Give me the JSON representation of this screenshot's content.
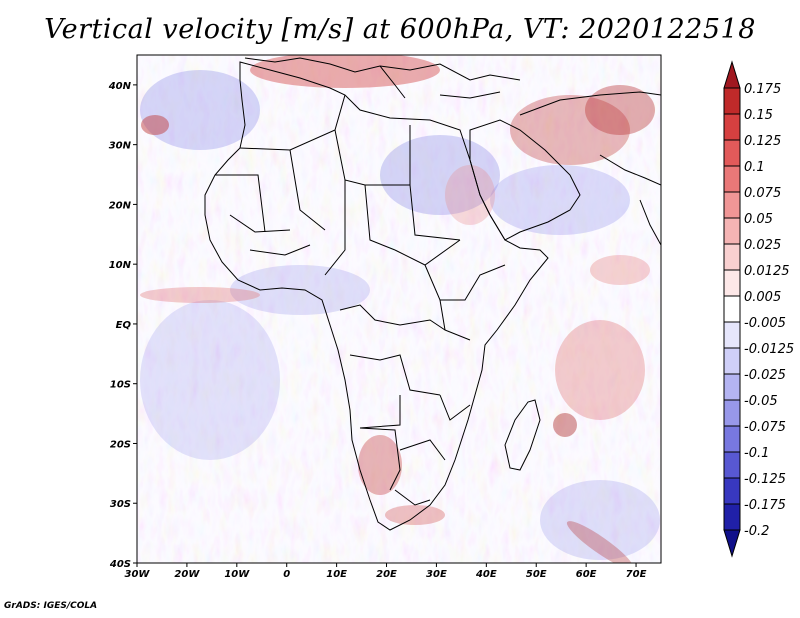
{
  "title": "Vertical velocity [m/s] at 600hPa, VT: 2020122518",
  "footer": "GrADS: IGES/COLA",
  "map": {
    "lat_labels": [
      "40N",
      "30N",
      "20N",
      "10N",
      "EQ",
      "10S",
      "20S",
      "30S",
      "40S"
    ],
    "lon_labels": [
      "30W",
      "20W",
      "10W",
      "0",
      "10E",
      "20E",
      "30E",
      "40E",
      "50E",
      "60E",
      "70E"
    ],
    "lon_range": [
      -30,
      75
    ],
    "lat_range": [
      -40,
      45
    ]
  },
  "colorbar": {
    "labels": [
      "0.175",
      "0.15",
      "0.125",
      "0.1",
      "0.075",
      "0.05",
      "0.025",
      "0.0125",
      "0.005",
      "-0.005",
      "-0.0125",
      "-0.025",
      "-0.05",
      "-0.075",
      "-0.1",
      "-0.125",
      "-0.175",
      "-0.2"
    ],
    "colors": [
      "#a01820",
      "#c02a2a",
      "#d64040",
      "#e25a5a",
      "#ea7878",
      "#f09696",
      "#f5b4b4",
      "#f9d0d0",
      "#fde8e8",
      "#ffffff",
      "#e6e6fc",
      "#cfcff8",
      "#b4b4f2",
      "#9898ea",
      "#7878e0",
      "#5858d2",
      "#3838c0",
      "#2020a8",
      "#10108a"
    ]
  },
  "chart_data": {
    "type": "heatmap",
    "title": "Vertical velocity [m/s] at 600hPa, VT: 2020122518",
    "variable": "Vertical velocity",
    "units": "m/s",
    "level": "600hPa",
    "valid_time": "2020122518",
    "x_axis": {
      "labels": [
        "30W",
        "20W",
        "10W",
        "0",
        "10E",
        "20E",
        "30E",
        "40E",
        "50E",
        "60E",
        "70E"
      ],
      "range": [
        -30,
        75
      ]
    },
    "y_axis": {
      "labels": [
        "40N",
        "30N",
        "20N",
        "10N",
        "EQ",
        "10S",
        "20S",
        "30S",
        "40S"
      ],
      "range": [
        -40,
        45
      ]
    },
    "contour_levels": [
      -0.2,
      -0.175,
      -0.125,
      -0.1,
      -0.075,
      -0.05,
      -0.025,
      -0.0125,
      -0.005,
      0.005,
      0.0125,
      0.025,
      0.05,
      0.075,
      0.1,
      0.125,
      0.15,
      0.175
    ]
  }
}
